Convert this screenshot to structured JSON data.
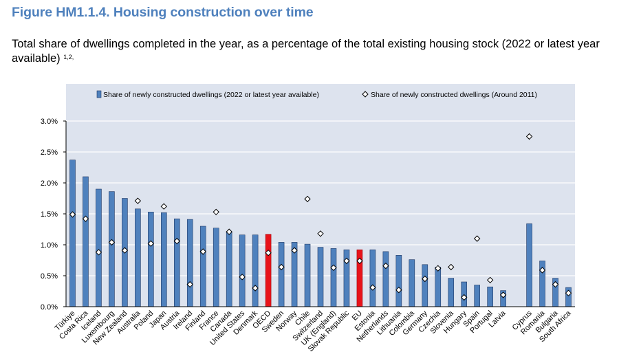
{
  "figure": {
    "title": "Figure HM1.1.4. Housing construction over time",
    "subtitle": "Total share of dwellings completed in the year, as a percentage of the total existing housing stock (2022 or latest year available)",
    "subtitle_sup": "1,2,"
  },
  "colors": {
    "bar": "#4f81bd",
    "bar_highlight": "#e8131a",
    "bar_outline": "#1f3864",
    "plot_background": "#dde3ee",
    "title": "#4f81bd"
  },
  "chart_data": {
    "type": "bar",
    "legend": {
      "position": "top",
      "entries": [
        {
          "name": "Share of newly constructed dwellings (2022 or latest year available)",
          "marker": "bar-icon"
        },
        {
          "name": "Share of newly constructed dwellings  (Around 2011)",
          "marker": "diamond-icon"
        }
      ]
    },
    "ylim": [
      0,
      3.0
    ],
    "yticks": [
      {
        "value": 0.0,
        "label": "0.0%"
      },
      {
        "value": 0.5,
        "label": "0.5%"
      },
      {
        "value": 1.0,
        "label": "1.0%"
      },
      {
        "value": 1.5,
        "label": "1.5%"
      },
      {
        "value": 2.0,
        "label": "2.0%"
      },
      {
        "value": 2.5,
        "label": "2.5%"
      },
      {
        "value": 3.0,
        "label": "3.0%"
      }
    ],
    "grid": true,
    "categories": [
      "Türkiye",
      "Costa Rica",
      "Iceland",
      "Luxembourg",
      "New Zealand",
      "Australia",
      "Poland",
      "Japan",
      "Austria",
      "Ireland",
      "Finland",
      "France",
      "Canada",
      "United States",
      "Denmark",
      "OECD",
      "Sweden",
      "Norway",
      "Chile",
      "Switzerland",
      "UK (England)",
      "Slovak Republic",
      "EU",
      "Estonia",
      "Netherlands",
      "Lithuania",
      "Colombia",
      "Germany",
      "Czechia",
      "Slovenia",
      "Hungary",
      "Spain",
      "Portugal",
      "Latvia",
      "",
      "Cyprus",
      "Romania",
      "Bulgaria",
      "South Africa"
    ],
    "highlight": [
      "OECD",
      "EU"
    ],
    "series": [
      {
        "name": "Share of newly constructed dwellings (2022 or latest year available)",
        "kind": "bar",
        "values": [
          2.37,
          2.1,
          1.9,
          1.86,
          1.75,
          1.58,
          1.53,
          1.52,
          1.42,
          1.41,
          1.3,
          1.27,
          1.2,
          1.16,
          1.16,
          1.17,
          1.04,
          1.04,
          1.01,
          0.96,
          0.94,
          0.92,
          0.92,
          0.92,
          0.89,
          0.83,
          0.76,
          0.68,
          0.64,
          0.46,
          0.4,
          0.35,
          0.32,
          0.26,
          null,
          1.34,
          0.74,
          0.46,
          0.31
        ]
      },
      {
        "name": "Share of newly constructed dwellings  (Around 2011)",
        "kind": "marker",
        "values": [
          1.49,
          1.42,
          0.88,
          1.04,
          0.91,
          1.71,
          1.02,
          1.62,
          1.06,
          0.36,
          0.89,
          1.53,
          1.21,
          0.48,
          0.3,
          0.87,
          0.64,
          0.91,
          1.74,
          1.18,
          0.63,
          0.74,
          0.74,
          0.31,
          0.66,
          0.27,
          null,
          0.45,
          0.62,
          0.64,
          0.15,
          1.1,
          0.43,
          0.19,
          null,
          2.75,
          0.59,
          0.36,
          0.22
        ]
      }
    ]
  }
}
